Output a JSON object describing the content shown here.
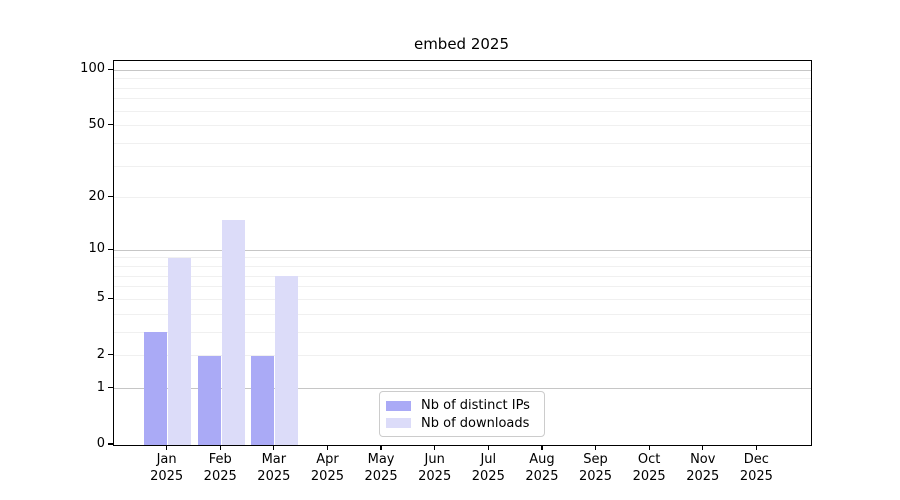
{
  "chart_data": {
    "type": "bar",
    "title": "embed 2025",
    "categories": [
      "Jan",
      "Feb",
      "Mar",
      "Apr",
      "May",
      "Jun",
      "Jul",
      "Aug",
      "Sep",
      "Oct",
      "Nov",
      "Dec"
    ],
    "category_year": "2025",
    "series": [
      {
        "name": "Nb of distinct IPs",
        "color": "#aaaaf6",
        "values": [
          3,
          2,
          2,
          0,
          0,
          0,
          0,
          0,
          0,
          0,
          0,
          0
        ]
      },
      {
        "name": "Nb of downloads",
        "color": "#dcdcf9",
        "values": [
          9,
          15,
          7,
          0,
          0,
          0,
          0,
          0,
          0,
          0,
          0,
          0
        ]
      }
    ],
    "y_axis": {
      "scale": "log1p",
      "tick_labels": [
        0,
        1,
        2,
        5,
        10,
        20,
        50,
        100
      ],
      "major_gridlines": [
        1,
        10,
        100
      ],
      "minor_gridlines": [
        2,
        3,
        4,
        5,
        6,
        7,
        8,
        9,
        20,
        30,
        40,
        50,
        60,
        70,
        80,
        90
      ],
      "ylim": [
        0,
        112
      ]
    },
    "xlabel": "",
    "ylabel": "",
    "legend_position": "lower center",
    "grid": true
  },
  "colors": {
    "series_dark": "#aaaaf6",
    "series_light": "#dcdcf9",
    "major_grid": "#c6c6c6",
    "minor_grid": "#f0f0f0",
    "spine": "#000000",
    "legend_border": "#cccccc",
    "text": "#000000"
  }
}
